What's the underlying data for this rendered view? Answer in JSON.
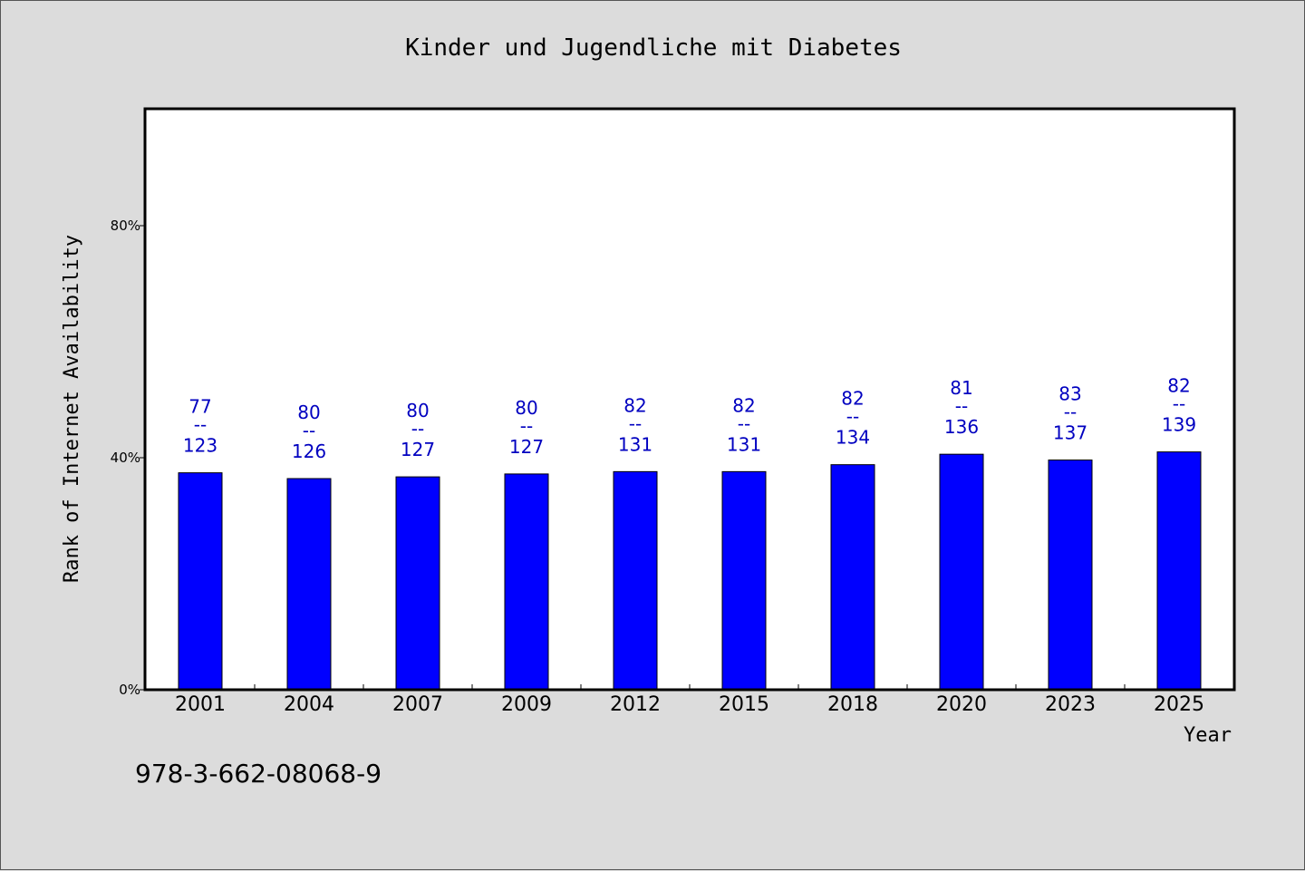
{
  "chart_data": {
    "type": "bar",
    "title": "Kinder und Jugendliche mit Diabetes",
    "xlabel": "Year",
    "ylabel": "Rank of Internet Availability",
    "ylim": [
      0,
      100
    ],
    "y_ticks": [
      {
        "value": 0,
        "label": "0%"
      },
      {
        "value": 40,
        "label": "40%"
      },
      {
        "value": 80,
        "label": "80%"
      }
    ],
    "categories": [
      "2001",
      "2004",
      "2007",
      "2009",
      "2012",
      "2015",
      "2018",
      "2020",
      "2023",
      "2025"
    ],
    "values": [
      37.4,
      36.4,
      36.7,
      37.2,
      37.6,
      37.6,
      38.8,
      40.6,
      39.6,
      41.0
    ],
    "data_labels": [
      {
        "top": "77",
        "mid": "--",
        "bottom": "123"
      },
      {
        "top": "80",
        "mid": "--",
        "bottom": "126"
      },
      {
        "top": "80",
        "mid": "--",
        "bottom": "127"
      },
      {
        "top": "80",
        "mid": "--",
        "bottom": "127"
      },
      {
        "top": "82",
        "mid": "--",
        "bottom": "131"
      },
      {
        "top": "82",
        "mid": "--",
        "bottom": "131"
      },
      {
        "top": "82",
        "mid": "--",
        "bottom": "134"
      },
      {
        "top": "81",
        "mid": "--",
        "bottom": "136"
      },
      {
        "top": "83",
        "mid": "--",
        "bottom": "137"
      },
      {
        "top": "82",
        "mid": "--",
        "bottom": "139"
      }
    ],
    "bar_color": "#0000ff",
    "label_color": "#0000c0",
    "grid": false,
    "legend": "none"
  },
  "footer_text": "978-3-662-08068-9"
}
